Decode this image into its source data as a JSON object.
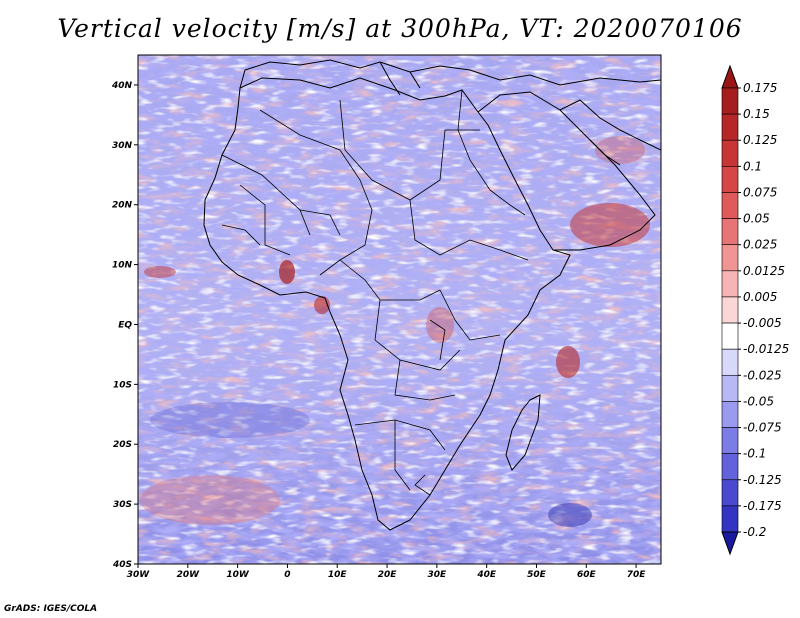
{
  "title": "Vertical velocity [m/s] at 300hPa, VT: 2020070106",
  "footer": "GrADS: IGES/COLA",
  "map": {
    "lon_range": [
      -30,
      75
    ],
    "lat_range": [
      -40,
      45
    ],
    "lat_ticks": [
      {
        "value": 40,
        "label": "40N"
      },
      {
        "value": 30,
        "label": "30N"
      },
      {
        "value": 20,
        "label": "20N"
      },
      {
        "value": 10,
        "label": "10N"
      },
      {
        "value": 0,
        "label": "EQ"
      },
      {
        "value": -10,
        "label": "10S"
      },
      {
        "value": -20,
        "label": "20S"
      },
      {
        "value": -30,
        "label": "30S"
      },
      {
        "value": -40,
        "label": "40S"
      }
    ],
    "lon_ticks": [
      {
        "value": -30,
        "label": "30W"
      },
      {
        "value": -20,
        "label": "20W"
      },
      {
        "value": -10,
        "label": "10W"
      },
      {
        "value": 0,
        "label": "0"
      },
      {
        "value": 10,
        "label": "10E"
      },
      {
        "value": 20,
        "label": "20E"
      },
      {
        "value": 30,
        "label": "30E"
      },
      {
        "value": 40,
        "label": "40E"
      },
      {
        "value": 50,
        "label": "50E"
      },
      {
        "value": 60,
        "label": "60E"
      },
      {
        "value": 70,
        "label": "70E"
      }
    ]
  },
  "colorbar": {
    "levels": [
      {
        "label": "0.175",
        "color": "#a51d1d"
      },
      {
        "label": "0.15",
        "color": "#b82727"
      },
      {
        "label": "0.125",
        "color": "#c83535"
      },
      {
        "label": "0.1",
        "color": "#d64646"
      },
      {
        "label": "0.075",
        "color": "#e05a5a"
      },
      {
        "label": "0.05",
        "color": "#e87575"
      },
      {
        "label": "0.025",
        "color": "#f09494"
      },
      {
        "label": "0.0125",
        "color": "#f6b4b4"
      },
      {
        "label": "0.005",
        "color": "#fad6d6"
      },
      {
        "label": "-0.005",
        "color": "#ffffff"
      },
      {
        "label": "-0.0125",
        "color": "#d8d8fa"
      },
      {
        "label": "-0.025",
        "color": "#b8b8f4"
      },
      {
        "label": "-0.05",
        "color": "#9a9aee"
      },
      {
        "label": "-0.075",
        "color": "#7c7ce6"
      },
      {
        "label": "-0.1",
        "color": "#6262dc"
      },
      {
        "label": "-0.125",
        "color": "#4a4ad0"
      },
      {
        "label": "-0.175",
        "color": "#3434c2"
      },
      {
        "label": "-0.2",
        "color": "#2222b0"
      }
    ],
    "top_color": "#9a1515",
    "bottom_color": "#1a1aa0"
  }
}
